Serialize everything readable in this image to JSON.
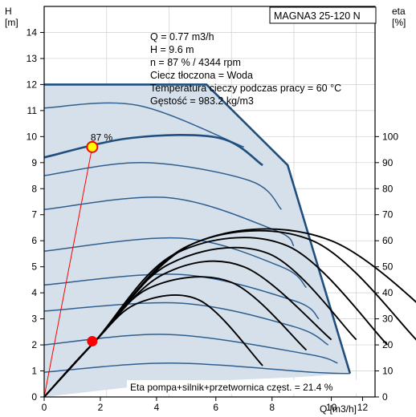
{
  "chart_data": {
    "type": "line",
    "title": "MAGNA3 25-120 N",
    "y_axis_left": {
      "label_line1": "H",
      "label_line2": "[m]",
      "range": [
        0,
        15
      ],
      "ticks": [
        "0",
        "1",
        "2",
        "3",
        "4",
        "5",
        "6",
        "7",
        "8",
        "9",
        "10",
        "11",
        "12",
        "13",
        "14"
      ]
    },
    "y_axis_right": {
      "label_line1": "eta",
      "label_line2": "[%]",
      "range": [
        0,
        150
      ],
      "ticks": [
        "0",
        "10",
        "20",
        "30",
        "40",
        "50",
        "60",
        "70",
        "80",
        "90",
        "100"
      ]
    },
    "x_axis": {
      "label": "Q [m3/h]",
      "range": [
        0,
        5.3
      ],
      "ticks": [
        "0",
        "2",
        "4",
        "6",
        "8",
        "10",
        "12"
      ]
    },
    "grid": true,
    "info_lines": [
      "Q = 0.77 m3/h",
      "H = 9.6 m",
      "n = 87 % / 4344 rpm",
      "Ciecz tłoczona = Woda",
      "Temperatura cieczy podczas pracy = 60 °C",
      "Gęstość = 983.2 kg/m3"
    ],
    "operating_point": {
      "q": 0.77,
      "h": 9.6,
      "label": "87 %"
    },
    "efficiency_point": {
      "q": 0.77,
      "eta": 21.4
    },
    "efficiency_note": "Eta pompa+silnik+przetwornica częst. = 21.4 %",
    "envelope": [
      [
        0,
        12
      ],
      [
        2.6,
        12
      ],
      [
        3.9,
        8.9
      ],
      [
        4.9,
        0.9
      ],
      [
        4.0,
        0.75
      ],
      [
        2.0,
        0.55
      ],
      [
        0,
        0
      ]
    ],
    "speed_curves_h": [
      [
        [
          0,
          11.1
        ],
        [
          1.5,
          11.2
        ],
        [
          3.2,
          9.6
        ]
      ],
      [
        [
          0,
          9.2
        ],
        [
          1.4,
          9.95
        ],
        [
          2.8,
          9.95
        ],
        [
          3.5,
          8.9
        ]
      ],
      [
        [
          0,
          8.5
        ],
        [
          1.6,
          9.0
        ],
        [
          3.3,
          8.3
        ],
        [
          3.8,
          7.2
        ]
      ],
      [
        [
          0,
          7.2
        ],
        [
          2.0,
          7.65
        ],
        [
          3.7,
          6.4
        ],
        [
          4.0,
          5.8
        ]
      ],
      [
        [
          0,
          5.6
        ],
        [
          2.2,
          6.1
        ],
        [
          3.8,
          5.0
        ],
        [
          4.2,
          4.2
        ]
      ],
      [
        [
          0,
          4.3
        ],
        [
          2.2,
          4.7
        ],
        [
          4.0,
          3.7
        ],
        [
          4.4,
          3.0
        ]
      ],
      [
        [
          0,
          3.3
        ],
        [
          2.2,
          3.6
        ],
        [
          4.0,
          2.7
        ],
        [
          4.55,
          2.0
        ]
      ],
      [
        [
          0,
          2.0
        ],
        [
          2.0,
          2.4
        ],
        [
          4.2,
          1.65
        ],
        [
          4.7,
          1.3
        ]
      ],
      [
        [
          0,
          0.95
        ],
        [
          2.0,
          1.3
        ],
        [
          4.3,
          0.95
        ],
        [
          4.9,
          0.9
        ]
      ]
    ],
    "efficiency_curves_eta": [
      [
        [
          0,
          0
        ],
        [
          0.8,
          21
        ],
        [
          1.5,
          36
        ],
        [
          2.5,
          37
        ],
        [
          3.5,
          12
        ]
      ],
      [
        [
          0,
          0
        ],
        [
          0.8,
          21
        ],
        [
          1.7,
          42
        ],
        [
          3.0,
          44
        ],
        [
          4.2,
          18
        ]
      ],
      [
        [
          0,
          0
        ],
        [
          0.8,
          21
        ],
        [
          1.9,
          47
        ],
        [
          3.2,
          50
        ],
        [
          4.6,
          22
        ]
      ],
      [
        [
          0,
          0
        ],
        [
          0.8,
          21
        ],
        [
          2.0,
          51
        ],
        [
          3.6,
          55
        ],
        [
          5.0,
          22
        ]
      ],
      [
        [
          0,
          0
        ],
        [
          0.8,
          21
        ],
        [
          2.1,
          55
        ],
        [
          3.9,
          58
        ],
        [
          5.5,
          20
        ]
      ],
      [
        [
          0,
          0
        ],
        [
          0.8,
          21
        ],
        [
          2.3,
          58
        ],
        [
          4.3,
          60
        ],
        [
          6.0,
          21
        ]
      ],
      [
        [
          0,
          0
        ],
        [
          0.8,
          21
        ],
        [
          2.4,
          59
        ],
        [
          4.6,
          60
        ],
        [
          6.8,
          18
        ]
      ]
    ]
  }
}
